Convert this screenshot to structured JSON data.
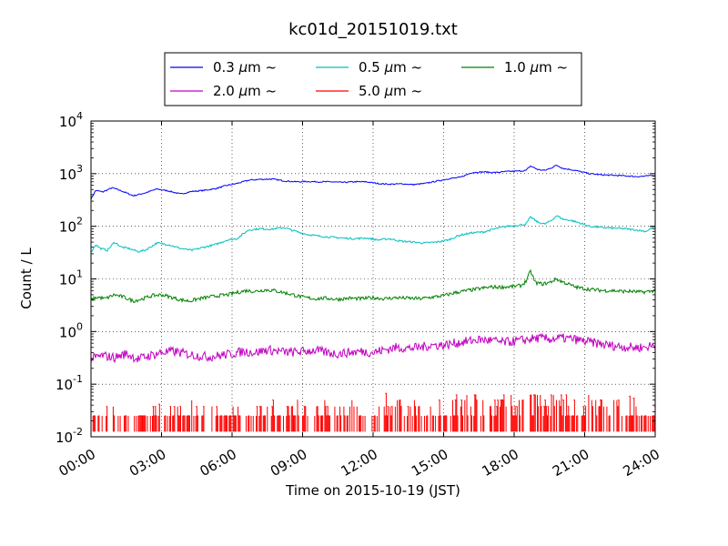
{
  "chart_data": {
    "type": "line",
    "title": "kc01d_20151019.txt",
    "xlabel": "Time on 2015-10-19 (JST)",
    "ylabel": "Count / L",
    "x_tick_labels": [
      "00:00",
      "03:00",
      "06:00",
      "09:00",
      "12:00",
      "15:00",
      "18:00",
      "21:00",
      "24:00"
    ],
    "x_range_hours": [
      0,
      24
    ],
    "y_scale": "log",
    "y_tick_labels": [
      {
        "base": "10",
        "exp": "-2"
      },
      {
        "base": "10",
        "exp": "-1"
      },
      {
        "base": "10",
        "exp": "0"
      },
      {
        "base": "10",
        "exp": "1"
      },
      {
        "base": "10",
        "exp": "2"
      },
      {
        "base": "10",
        "exp": "3"
      },
      {
        "base": "10",
        "exp": "4"
      }
    ],
    "ylim": [
      0.01,
      10000
    ],
    "grid": true,
    "legend_placement": "top-center, outside",
    "legend_unit": "μm",
    "legend_suffix": "~",
    "series": [
      {
        "name": "0.3",
        "color": "#0000ff",
        "x": [
          0,
          0.2,
          0.5,
          0.9,
          1.3,
          1.8,
          2.3,
          2.8,
          3.3,
          3.8,
          4.3,
          4.8,
          5.3,
          5.8,
          6.2,
          6.7,
          7.2,
          7.7,
          8.2,
          8.7,
          9.2,
          9.7,
          10.2,
          10.7,
          11.2,
          11.7,
          12.2,
          12.7,
          13.2,
          13.7,
          14.2,
          14.7,
          15.2,
          15.7,
          16.2,
          16.7,
          17.2,
          17.7,
          18.2,
          18.5,
          18.7,
          19.0,
          19.3,
          19.6,
          19.8,
          20.1,
          20.4,
          20.8,
          21.2,
          21.7,
          22.2,
          22.7,
          23.2,
          23.6,
          24
        ],
        "y": [
          330,
          480,
          450,
          540,
          470,
          380,
          430,
          510,
          470,
          410,
          460,
          480,
          520,
          600,
          650,
          750,
          780,
          790,
          730,
          700,
          710,
          700,
          700,
          680,
          700,
          700,
          650,
          630,
          640,
          620,
          650,
          720,
          800,
          850,
          1050,
          1080,
          1050,
          1100,
          1120,
          1150,
          1400,
          1200,
          1150,
          1300,
          1450,
          1250,
          1200,
          1100,
          1000,
          950,
          930,
          910,
          880,
          900,
          930
        ]
      },
      {
        "name": "0.5",
        "color": "#00bfbf",
        "x": [
          0,
          0.2,
          0.4,
          0.7,
          1.0,
          1.3,
          1.6,
          2.0,
          2.3,
          2.8,
          3.3,
          3.8,
          4.3,
          4.8,
          5.3,
          5.8,
          6.2,
          6.7,
          7.2,
          7.7,
          8.2,
          8.7,
          9.2,
          9.7,
          10.2,
          10.7,
          11.2,
          11.7,
          12.2,
          12.7,
          13.2,
          13.7,
          14.2,
          14.7,
          15.2,
          15.7,
          16.2,
          16.7,
          17.2,
          17.7,
          18.2,
          18.5,
          18.7,
          19.0,
          19.3,
          19.6,
          19.8,
          20.1,
          20.4,
          20.8,
          21.2,
          21.7,
          22.2,
          22.7,
          23.2,
          23.6,
          24
        ],
        "y": [
          32,
          45,
          38,
          35,
          50,
          40,
          38,
          33,
          35,
          48,
          45,
          38,
          35,
          40,
          45,
          55,
          58,
          85,
          90,
          88,
          95,
          80,
          70,
          65,
          62,
          60,
          58,
          60,
          55,
          58,
          52,
          50,
          48,
          50,
          55,
          68,
          75,
          78,
          90,
          100,
          105,
          110,
          150,
          120,
          110,
          130,
          160,
          135,
          130,
          115,
          100,
          95,
          92,
          90,
          85,
          80,
          100
        ]
      },
      {
        "name": "1.0",
        "color": "#008000",
        "x": [
          0,
          0.3,
          0.6,
          1.0,
          1.4,
          1.8,
          2.2,
          2.6,
          3.0,
          3.4,
          3.8,
          4.2,
          4.6,
          5.0,
          5.4,
          5.8,
          6.2,
          6.6,
          7.0,
          7.4,
          7.8,
          8.2,
          8.6,
          9.0,
          9.5,
          10.0,
          10.5,
          11.0,
          11.5,
          12.0,
          12.5,
          13.0,
          13.5,
          14.0,
          14.5,
          15.0,
          15.5,
          16.0,
          16.5,
          17.0,
          17.5,
          18.0,
          18.3,
          18.5,
          18.7,
          18.9,
          19.2,
          19.5,
          19.8,
          20.0,
          20.3,
          20.6,
          21.0,
          21.4,
          21.8,
          22.2,
          22.6,
          23.0,
          23.4,
          23.8,
          24
        ],
        "y": [
          4,
          4.5,
          4.2,
          5,
          4.5,
          3.8,
          4.2,
          4.8,
          5,
          4.5,
          4,
          3.8,
          4.2,
          4.5,
          4.8,
          5,
          5.5,
          6,
          5.8,
          6.2,
          6,
          5.5,
          5,
          4.5,
          4.2,
          4.3,
          4.1,
          4.3,
          4.2,
          4.4,
          4.2,
          4.4,
          4.3,
          4.2,
          4.5,
          4.8,
          5.5,
          6,
          6.5,
          7,
          7,
          7.2,
          7.5,
          9,
          14,
          8.5,
          8,
          8.5,
          10,
          9,
          8,
          7,
          6.5,
          6.2,
          6,
          6,
          5.8,
          5.8,
          5.6,
          5.8,
          6.2
        ]
      },
      {
        "name": "2.0",
        "color": "#bf00bf",
        "x": [
          0,
          0.5,
          1.0,
          1.5,
          2.0,
          2.5,
          3.0,
          3.5,
          4.0,
          4.5,
          5.0,
          5.5,
          6.0,
          6.5,
          7.0,
          7.5,
          8.0,
          8.5,
          9.0,
          9.5,
          10.0,
          10.5,
          11.0,
          11.5,
          12.0,
          12.5,
          13.0,
          13.5,
          14.0,
          14.5,
          15.0,
          15.5,
          16.0,
          16.5,
          17.0,
          17.5,
          18.0,
          18.5,
          19.0,
          19.5,
          20.0,
          20.5,
          21.0,
          21.5,
          22.0,
          22.5,
          23.0,
          23.5,
          24
        ],
        "y": [
          0.3,
          0.35,
          0.32,
          0.38,
          0.3,
          0.35,
          0.4,
          0.42,
          0.38,
          0.35,
          0.33,
          0.35,
          0.38,
          0.42,
          0.4,
          0.45,
          0.42,
          0.4,
          0.42,
          0.44,
          0.4,
          0.38,
          0.4,
          0.42,
          0.4,
          0.45,
          0.5,
          0.48,
          0.5,
          0.55,
          0.55,
          0.6,
          0.65,
          0.7,
          0.68,
          0.62,
          0.65,
          0.7,
          0.75,
          0.72,
          0.75,
          0.72,
          0.65,
          0.6,
          0.55,
          0.52,
          0.5,
          0.5,
          0.55
        ]
      },
      {
        "name": "5.0",
        "color": "#ff0000",
        "x": [
          0.4,
          1.1,
          1.6,
          2.3,
          3.0,
          3.7,
          4.4,
          5.0,
          5.6,
          6.1,
          6.7,
          7.3,
          7.9,
          8.6,
          9.1,
          9.8,
          10.4,
          11.0,
          11.6,
          12.2,
          12.8,
          13.4,
          14.0,
          14.6,
          15.2,
          15.8,
          16.4,
          17.0,
          17.6,
          18.2,
          18.8,
          19.4,
          20.0,
          20.6,
          21.2,
          21.8,
          22.4,
          23.0,
          23.5,
          24
        ],
        "y": [
          0.025,
          0.035,
          0.02,
          0.035,
          0.025,
          0.035,
          0.03,
          0.035,
          0.025,
          0.03,
          0.035,
          0.045,
          0.04,
          0.03,
          0.035,
          0.05,
          0.03,
          0.055,
          0.035,
          0.045,
          0.04,
          0.055,
          0.05,
          0.035,
          0.065,
          0.05,
          0.07,
          0.045,
          0.06,
          0.055,
          0.1,
          0.055,
          0.07,
          0.05,
          0.065,
          0.04,
          0.055,
          0.035,
          0.03,
          0.045
        ]
      }
    ]
  }
}
